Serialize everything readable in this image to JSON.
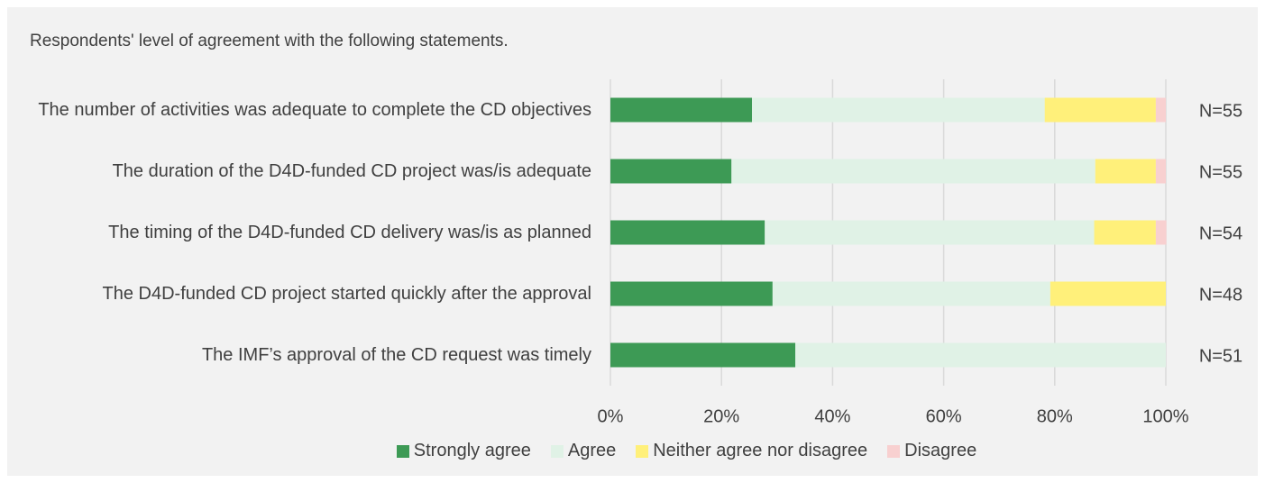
{
  "chart_data": {
    "type": "stacked_barh",
    "title": "Respondents' level of agreement with the following statements.",
    "categories": [
      "The number of activities was adequate to complete the CD objectives",
      "The duration of the D4D-funded CD project was/is adequate",
      "The timing of the D4D-funded CD delivery was/is as planned",
      "The D4D-funded CD project started quickly after the approval",
      "The IMF’s approval of the CD request was timely"
    ],
    "series": [
      {
        "name": "Strongly agree",
        "color": "#3d9a55",
        "values": [
          25.5,
          21.8,
          27.8,
          29.2,
          33.3
        ]
      },
      {
        "name": "Agree",
        "color": "#e0f2e6",
        "values": [
          52.7,
          65.5,
          59.3,
          50.0,
          66.7
        ]
      },
      {
        "name": "Neither agree nor disagree",
        "color": "#fff07a",
        "values": [
          20.0,
          10.9,
          11.1,
          20.8,
          0
        ]
      },
      {
        "name": "Disagree",
        "color": "#f8d0d0",
        "values": [
          1.8,
          1.8,
          1.9,
          0,
          0
        ]
      }
    ],
    "annotations": [
      "N=55",
      "N=55",
      "N=54",
      "N=48",
      "N=51"
    ],
    "xlim": [
      0,
      100
    ],
    "xticks": [
      {
        "value": 0,
        "label": "0%"
      },
      {
        "value": 20,
        "label": "20%"
      },
      {
        "value": 40,
        "label": "40%"
      },
      {
        "value": 60,
        "label": "60%"
      },
      {
        "value": 80,
        "label": "80%"
      },
      {
        "value": 100,
        "label": "100%"
      }
    ],
    "grid": true,
    "legend": "bottom"
  }
}
